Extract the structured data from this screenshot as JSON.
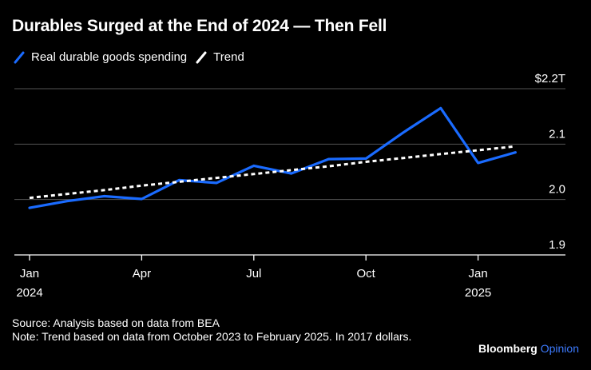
{
  "title": "Durables Surged at the End of 2024 — Then Fell",
  "legend": [
    {
      "label": "Real durable goods spending",
      "color": "#1a6bff",
      "style": "solid"
    },
    {
      "label": "Trend",
      "color": "#ffffff",
      "style": "dashed"
    }
  ],
  "chart_data": {
    "type": "line",
    "x": [
      "2024-01",
      "2024-02",
      "2024-03",
      "2024-04",
      "2024-05",
      "2024-06",
      "2024-07",
      "2024-08",
      "2024-09",
      "2024-10",
      "2024-11",
      "2024-12",
      "2025-01",
      "2025-02",
      "2025-03"
    ],
    "series": [
      {
        "name": "Real durable goods spending",
        "color": "#1a6bff",
        "values": [
          1.985,
          1.997,
          2.006,
          2.001,
          2.035,
          2.03,
          2.061,
          2.047,
          2.073,
          2.074,
          2.121,
          2.165,
          2.066,
          2.085,
          null
        ]
      },
      {
        "name": "Trend",
        "color": "#ffffff",
        "dashed": true,
        "values": [
          2.003,
          2.01,
          2.017,
          2.025,
          2.032,
          2.039,
          2.046,
          2.053,
          2.06,
          2.068,
          2.075,
          2.082,
          2.089,
          2.096,
          null
        ]
      }
    ],
    "yticks": [
      {
        "value": 2.2,
        "label": "$2.2T"
      },
      {
        "value": 2.1,
        "label": "2.1"
      },
      {
        "value": 2.0,
        "label": "2.0"
      },
      {
        "value": 1.9,
        "label": "1.9"
      }
    ],
    "xticks": [
      {
        "x": "2024-01",
        "label": "Jan",
        "sublabel": "2024"
      },
      {
        "x": "2024-04",
        "label": "Apr",
        "sublabel": ""
      },
      {
        "x": "2024-07",
        "label": "Jul",
        "sublabel": ""
      },
      {
        "x": "2024-10",
        "label": "Oct",
        "sublabel": ""
      },
      {
        "x": "2025-01",
        "label": "Jan",
        "sublabel": "2025"
      }
    ],
    "ylim": [
      1.9,
      2.2
    ],
    "grid": true,
    "yaxis_position": "right"
  },
  "footer": {
    "source": "Source: Analysis based on data from BEA",
    "note": "Note: Trend based on data from October 2023 to February 2025. In 2017 dollars."
  },
  "brand": {
    "name": "Bloomberg",
    "suffix": "Opinion"
  }
}
